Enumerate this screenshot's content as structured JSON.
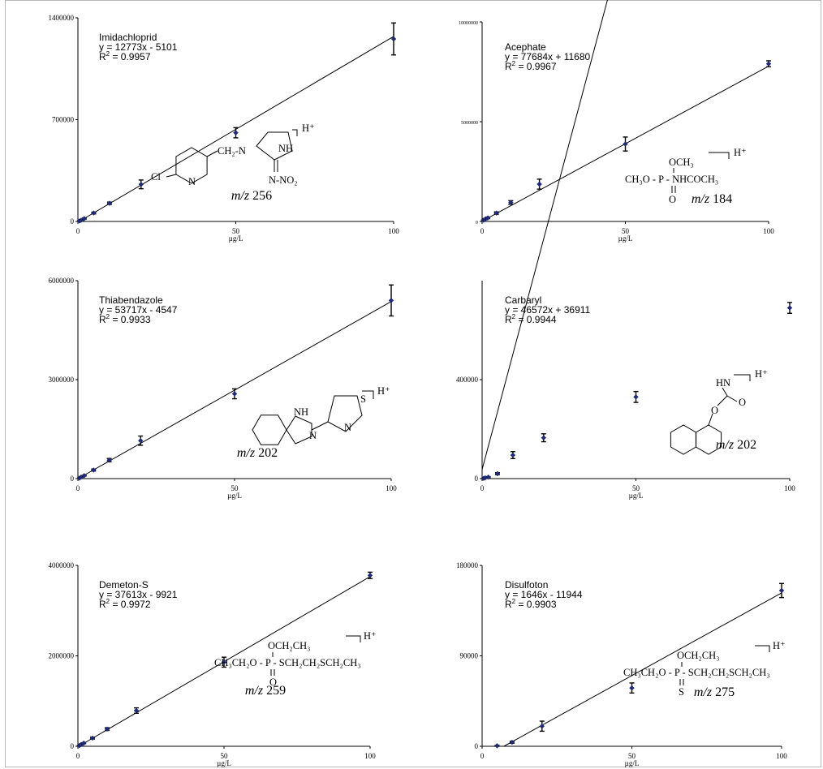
{
  "chart_data": [
    {
      "type": "scatter",
      "title": "Imidachloprid",
      "xlabel": "µg/L",
      "ylabel": "",
      "xlim": [
        0,
        100
      ],
      "ylim": [
        0,
        1400000
      ],
      "x_ticks": [
        "0",
        "50",
        "100"
      ],
      "y_ticks": [
        "0",
        "700000",
        "1400000"
      ],
      "x": [
        0.5,
        1,
        2,
        5,
        10,
        20,
        50,
        100
      ],
      "y": [
        3000,
        8000,
        20000,
        58000,
        125000,
        255000,
        610000,
        1255000
      ],
      "error": [
        2000,
        3000,
        4000,
        6000,
        8000,
        30000,
        35000,
        110000
      ],
      "fit": [
        12773,
        -5101
      ],
      "equation": "y = 12773x - 5101",
      "r2_label": "R",
      "r2_value": "= 0.9957",
      "structure_lines": [
        "CH₂-N",
        "NH",
        "H⁺",
        "Cl",
        "N",
        "N-NO₂"
      ],
      "mz_label": "m/z",
      "mz_value": "256"
    },
    {
      "type": "scatter",
      "title": "Acephate",
      "xlabel": "µg/L",
      "ylabel": "",
      "xlim": [
        0,
        100
      ],
      "ylim": [
        0,
        10000000
      ],
      "x_ticks": [
        "0",
        "50",
        "100"
      ],
      "y_ticks": [
        "0",
        "5000000",
        "10000000"
      ],
      "x": [
        0.5,
        1,
        2,
        5,
        10,
        20,
        50,
        100
      ],
      "y": [
        60000,
        110000,
        180000,
        420000,
        950000,
        1870000,
        3880000,
        7900000
      ],
      "error": [
        20000,
        30000,
        40000,
        60000,
        90000,
        250000,
        350000,
        150000
      ],
      "fit": [
        77684,
        11680
      ],
      "equation": "y = 77684x + 11680",
      "r2_label": "R",
      "r2_value": "= 0.9967",
      "structure_lines": [
        "OCH₃",
        "H⁺",
        "CH₃O - P - NHCOCH₃",
        "O"
      ],
      "mz_label": "m/z",
      "mz_value": "184"
    },
    {
      "type": "scatter",
      "title": "Thiabendazole",
      "xlabel": "µg/L",
      "ylabel": "",
      "xlim": [
        0,
        100
      ],
      "ylim": [
        0,
        6000000
      ],
      "x_ticks": [
        "0",
        "50",
        "100"
      ],
      "y_ticks": [
        "0",
        "3000000",
        "6000000"
      ],
      "x": [
        0.5,
        1,
        2,
        5,
        10,
        20,
        50,
        100
      ],
      "y": [
        15000,
        45000,
        90000,
        260000,
        560000,
        1150000,
        2570000,
        5400000
      ],
      "error": [
        5000,
        8000,
        12000,
        30000,
        50000,
        140000,
        150000,
        470000
      ],
      "fit": [
        53717,
        -4547
      ],
      "equation": "y = 53717x - 4547",
      "r2_label": "R",
      "r2_value": "= 0.9933",
      "structure_lines": [
        "NH",
        "S",
        "H⁺",
        "N",
        "N"
      ],
      "mz_label": "m/z",
      "mz_value": "202"
    },
    {
      "type": "scatter",
      "title": "Carbaryl",
      "xlabel": "µg/L",
      "ylabel": "",
      "xlim": [
        0,
        100
      ],
      "ylim": [
        0,
        800000
      ],
      "x_ticks": [
        "0",
        "50",
        "100"
      ],
      "y_ticks": [
        "0",
        "400000"
      ],
      "x": [
        0.5,
        1,
        2,
        5,
        10,
        20,
        50,
        100
      ],
      "y": [
        1000,
        3000,
        6000,
        20000,
        95000,
        165000,
        330000,
        690000
      ],
      "error": [
        1000,
        1500,
        2000,
        4000,
        14000,
        16000,
        22000,
        22000
      ],
      "fit": [
        46572,
        36911
      ],
      "equation": "y = 46572x + 36911",
      "r2_label": "R",
      "r2_value": "= 0.9944",
      "structure_lines": [
        "HN",
        "H⁺",
        "O",
        "O"
      ],
      "mz_label": "m/z",
      "mz_value": "202"
    },
    {
      "type": "scatter",
      "title": "Demeton-S",
      "xlabel": "µg/L",
      "ylabel": "",
      "xlim": [
        0,
        100
      ],
      "ylim": [
        0,
        4000000
      ],
      "x_ticks": [
        "0",
        "50",
        "100"
      ],
      "y_ticks": [
        "0",
        "2000000",
        "4000000"
      ],
      "x": [
        0.5,
        1,
        2,
        5,
        10,
        20,
        50,
        100
      ],
      "y": [
        15000,
        35000,
        70000,
        180000,
        380000,
        790000,
        1860000,
        3780000
      ],
      "error": [
        5000,
        8000,
        10000,
        20000,
        30000,
        60000,
        110000,
        70000
      ],
      "fit": [
        37613,
        -9921
      ],
      "equation": "y = 37613x - 9921",
      "r2_label": "R",
      "r2_value": "= 0.9972",
      "structure_lines": [
        "OCH₂CH₃",
        "H⁺",
        "CH₃CH₂O - P - SCH₂CH₂SCH₂CH₃",
        "O"
      ],
      "mz_label": "m/z",
      "mz_value": "259"
    },
    {
      "type": "scatter",
      "title": "Disulfoton",
      "xlabel": "µg/L",
      "ylabel": "",
      "xlim": [
        0,
        100
      ],
      "ylim": [
        0,
        180000
      ],
      "x_ticks": [
        "0",
        "50",
        "100"
      ],
      "y_ticks": [
        "0",
        "90000",
        "180000"
      ],
      "x": [
        5,
        10,
        20,
        50,
        100
      ],
      "y": [
        500,
        4000,
        20000,
        58000,
        155000
      ],
      "error": [
        500,
        1000,
        5000,
        5000,
        7000
      ],
      "fit": [
        1646,
        -11944
      ],
      "equation": "y = 1646x - 11944",
      "r2_label": "R",
      "r2_value": "= 0.9903",
      "structure_lines": [
        "OCH₂CH₃",
        "H⁺",
        "CH₃CH₂O - P - SCH₂CH₂SCH₂CH₃",
        "S"
      ],
      "mz_label": "m/z",
      "mz_value": "275"
    }
  ]
}
